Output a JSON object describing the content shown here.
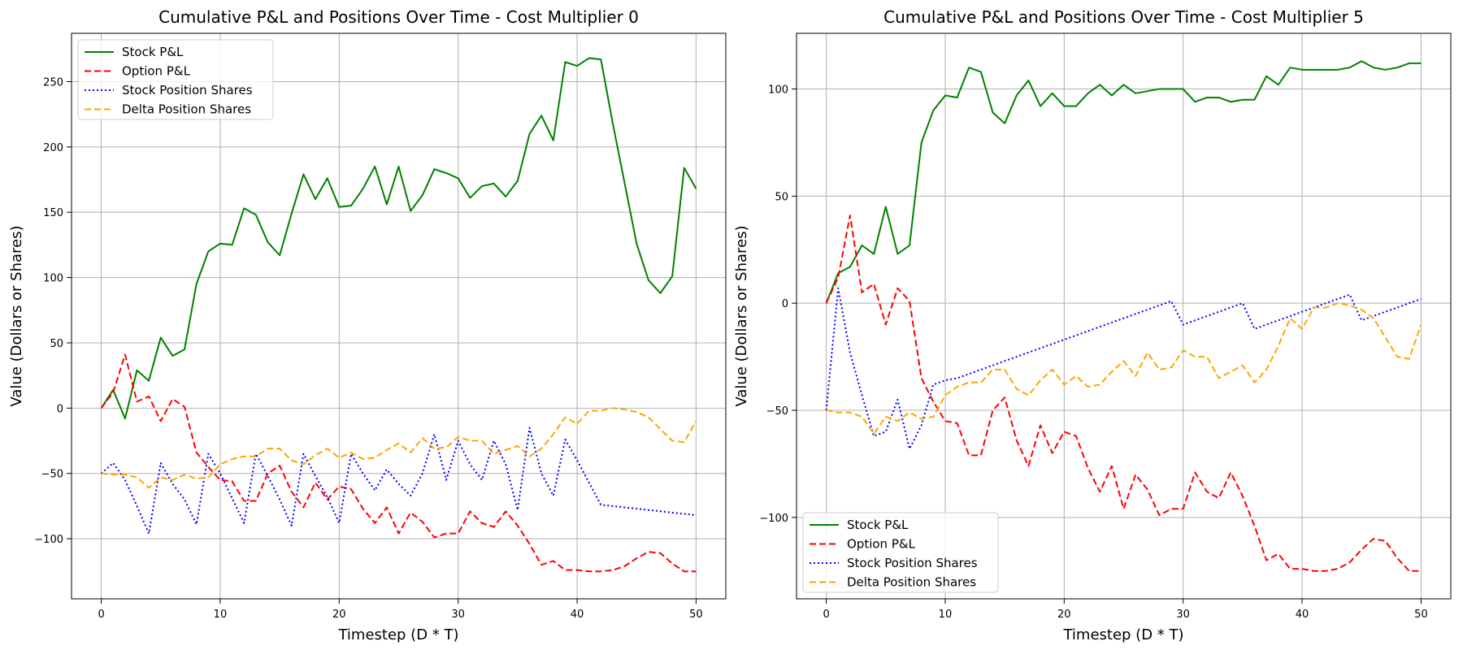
{
  "chart_data": [
    {
      "type": "line",
      "title": "Cumulative P&L and Positions Over Time - Cost Multiplier 0",
      "xlabel": "Timestep (D * T)",
      "ylabel": "Value (Dollars or Shares)",
      "xlim": [
        -2.5,
        52.5
      ],
      "ylim": [
        -146,
        287
      ],
      "xticks": [
        0,
        10,
        20,
        30,
        40,
        50
      ],
      "yticks": [
        -100,
        -50,
        0,
        50,
        100,
        150,
        200,
        250
      ],
      "grid": true,
      "legend_position": "upper-left",
      "series": [
        {
          "name": "Stock P&L",
          "color": "#008000",
          "dash": "solid",
          "values": [
            0,
            14,
            -8,
            29,
            21,
            54,
            40,
            45,
            95,
            120,
            126,
            125,
            153,
            148,
            127,
            117,
            149,
            179,
            160,
            176,
            154,
            155,
            168,
            185,
            156,
            185,
            151,
            163,
            183,
            180,
            176,
            161,
            170,
            172,
            162,
            174,
            210,
            224,
            205,
            265,
            262,
            268,
            267,
            218,
            172,
            126,
            98,
            88,
            101,
            184,
            168
          ]
        },
        {
          "name": "Option P&L",
          "color": "#ff0000",
          "dash": "dashed",
          "values": [
            0,
            12,
            41,
            5,
            9,
            -10,
            7,
            1,
            -34,
            -45,
            -55,
            -56,
            -71,
            -71,
            -50,
            -44,
            -64,
            -76,
            -57,
            -70,
            -60,
            -62,
            -77,
            -88,
            -76,
            -96,
            -80,
            -87,
            -99,
            -96,
            -96,
            -79,
            -88,
            -91,
            -79,
            -90,
            -104,
            -120,
            -117,
            -124,
            -124,
            -125,
            -125,
            -124,
            -121,
            -115,
            -110,
            -111,
            -119,
            -125,
            -125
          ]
        },
        {
          "name": "Stock Position Shares",
          "color": "#0000ff",
          "dash": "dotted",
          "values": [
            -50,
            -42,
            -55,
            -75,
            -96,
            -42,
            -58,
            -70,
            -89,
            -35,
            -50,
            -69,
            -88,
            -35,
            -52,
            -70,
            -90,
            -35,
            -52,
            -68,
            -88,
            -35,
            -50,
            -63,
            -47,
            -58,
            -67,
            -50,
            -20,
            -55,
            -25,
            -43,
            -55,
            -25,
            -43,
            -78,
            -15,
            -50,
            -67,
            -24,
            -40,
            -57,
            -74,
            -75,
            -76,
            -77,
            -78,
            -79,
            -80,
            -81,
            -82
          ]
        },
        {
          "name": "Delta Position Shares",
          "color": "#ffa500",
          "dash": "dashed",
          "values": [
            -50,
            -51,
            -51,
            -53,
            -61,
            -53,
            -55,
            -51,
            -54,
            -53,
            -43,
            -39,
            -37,
            -37,
            -31,
            -31,
            -40,
            -43,
            -36,
            -31,
            -38,
            -34,
            -39,
            -38,
            -32,
            -27,
            -34,
            -23,
            -31,
            -30,
            -22,
            -25,
            -25,
            -35,
            -32,
            -29,
            -37,
            -31,
            -20,
            -7,
            -12,
            -2,
            -2,
            0,
            -1,
            -3,
            -7,
            -16,
            -25,
            -26,
            -10
          ]
        }
      ]
    },
    {
      "type": "line",
      "title": "Cumulative P&L and Positions Over Time - Cost Multiplier 5",
      "xlabel": "Timestep (D * T)",
      "ylabel": "Value (Dollars or Shares)",
      "xlim": [
        -2.5,
        52.5
      ],
      "ylim": [
        -138,
        126
      ],
      "xticks": [
        0,
        10,
        20,
        30,
        40,
        50
      ],
      "yticks": [
        -100,
        -50,
        0,
        50,
        100
      ],
      "grid": true,
      "legend_position": "lower-left",
      "series": [
        {
          "name": "Stock P&L",
          "color": "#008000",
          "dash": "solid",
          "values": [
            0,
            14,
            17,
            27,
            23,
            45,
            23,
            27,
            75,
            90,
            97,
            96,
            110,
            108,
            89,
            84,
            97,
            104,
            92,
            98,
            92,
            92,
            98,
            102,
            97,
            102,
            98,
            99,
            100,
            100,
            100,
            94,
            96,
            96,
            94,
            95,
            95,
            106,
            102,
            110,
            109,
            109,
            109,
            109,
            110,
            113,
            110,
            109,
            110,
            112,
            112
          ]
        },
        {
          "name": "Option P&L",
          "color": "#ff0000",
          "dash": "dashed",
          "values": [
            0,
            12,
            41,
            5,
            9,
            -10,
            7,
            1,
            -35,
            -46,
            -55,
            -56,
            -71,
            -71,
            -50,
            -44,
            -64,
            -76,
            -57,
            -70,
            -60,
            -62,
            -77,
            -88,
            -76,
            -96,
            -80,
            -87,
            -99,
            -96,
            -96,
            -79,
            -88,
            -91,
            -79,
            -90,
            -104,
            -120,
            -117,
            -124,
            -124,
            -125,
            -125,
            -124,
            -121,
            -115,
            -110,
            -111,
            -119,
            -125,
            -125
          ]
        },
        {
          "name": "Stock Position Shares",
          "color": "#0000ff",
          "dash": "dotted",
          "values": [
            -50,
            7,
            -23,
            -43,
            -62,
            -60,
            -45,
            -68,
            -57,
            -38,
            -36,
            -35,
            -33,
            -31,
            -29,
            -27,
            -25,
            -23,
            -21,
            -19,
            -17,
            -15,
            -13,
            -11,
            -9,
            -7,
            -5,
            -3,
            -1,
            1,
            -10,
            -8,
            -6,
            -4,
            -2,
            0,
            -12,
            -10,
            -8,
            -6,
            -4,
            -2,
            0,
            2,
            4,
            -8,
            -6,
            -4,
            -2,
            0,
            2
          ]
        },
        {
          "name": "Delta Position Shares",
          "color": "#ffa500",
          "dash": "dashed",
          "values": [
            -50,
            -51,
            -51,
            -53,
            -61,
            -53,
            -55,
            -51,
            -54,
            -53,
            -43,
            -39,
            -37,
            -37,
            -31,
            -31,
            -40,
            -43,
            -36,
            -31,
            -38,
            -34,
            -39,
            -38,
            -32,
            -27,
            -34,
            -23,
            -31,
            -30,
            -22,
            -25,
            -25,
            -35,
            -32,
            -29,
            -37,
            -31,
            -20,
            -7,
            -12,
            -2,
            -2,
            0,
            -1,
            -3,
            -7,
            -16,
            -25,
            -26,
            -10
          ]
        }
      ]
    }
  ]
}
